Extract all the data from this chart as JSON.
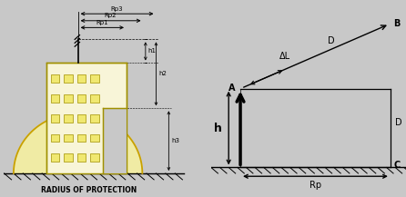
{
  "fig_bg": "#c8c8c8",
  "left_bg": "#c8c8c8",
  "right_bg": "#f0f0f0",
  "title": "RADIUS OF PROTECTION",
  "dome_color": "#f5f0a0",
  "dome_edge": "#c8a000",
  "building_face": "#f8f5d8",
  "building_edge": "#a09000",
  "window_face": "#f0e870",
  "window_edge": "#a09000",
  "rp_labels": [
    "Rp3",
    "Rp2",
    "Rp1"
  ],
  "h_labels": [
    "h1",
    "h2",
    "h3"
  ],
  "ground_color": "#888888",
  "arrow_color": "#111111",
  "text_color": "#111111",
  "dim_line_color": "#333333"
}
